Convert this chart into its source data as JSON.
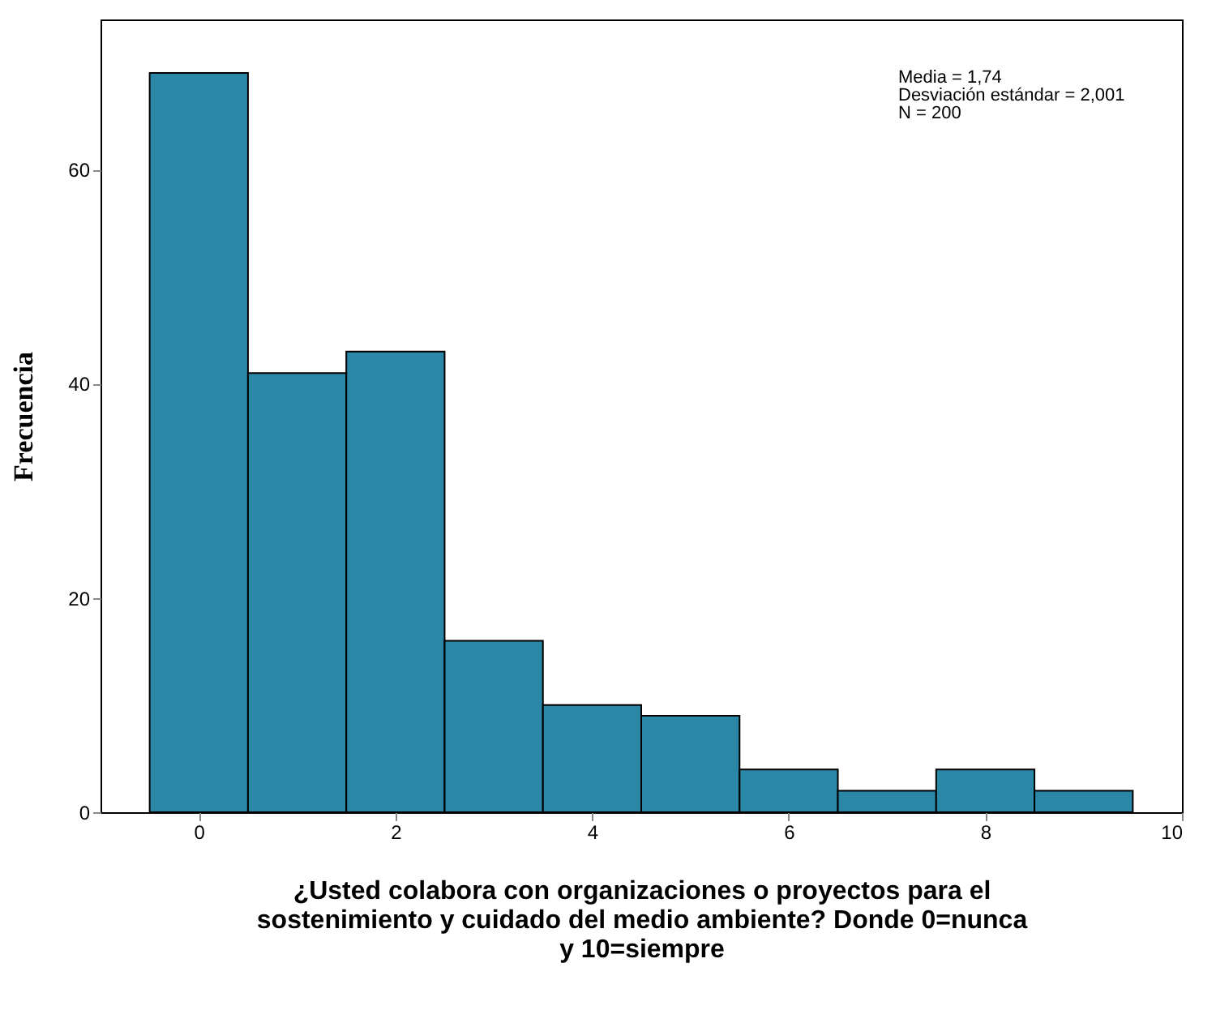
{
  "chart_data": {
    "type": "histogram",
    "xlabel": "¿Usted colabora con organizaciones o proyectos para el sostenimiento y cuidado del medio ambiente? Donde 0=nunca y 10=siempre",
    "ylabel": "Frecuencia",
    "bins": [
      -0.5,
      0.5,
      1.5,
      2.5,
      3.5,
      4.5,
      5.5,
      6.5,
      7.5,
      8.5,
      9.5
    ],
    "values": [
      69,
      41,
      43,
      16,
      10,
      9,
      4,
      2,
      4,
      2
    ],
    "color": "#2a87a6",
    "xlim": [
      -1,
      10
    ],
    "xticks": [
      0,
      2,
      4,
      6,
      8,
      10
    ],
    "ylim": [
      0,
      74
    ],
    "yticks": [
      0,
      20,
      40,
      60
    ],
    "grid": false,
    "annotations": [
      "Media = 1,74",
      "Desviación estándar = 2,001",
      "N = 200"
    ]
  }
}
